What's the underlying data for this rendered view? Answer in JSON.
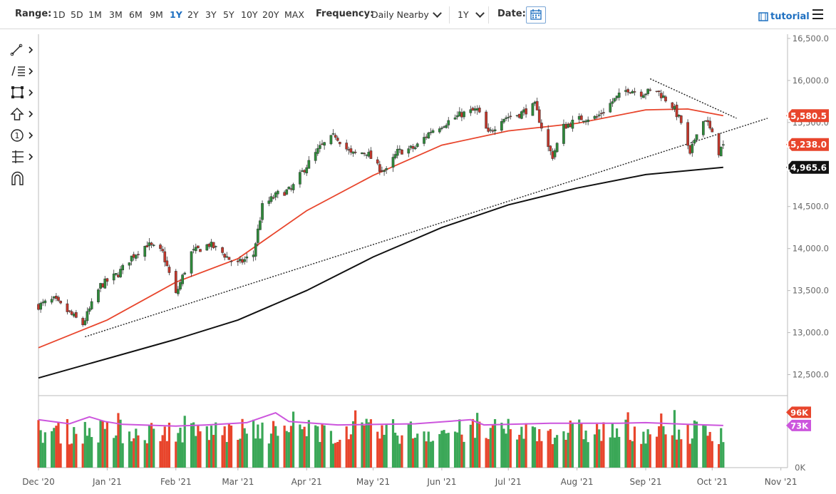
{
  "toolbar": {
    "range_label": "Range:",
    "ranges": [
      "1D",
      "5D",
      "1M",
      "3M",
      "6M",
      "9M",
      "1Y",
      "2Y",
      "3Y",
      "5Y",
      "10Y",
      "20Y",
      "MAX"
    ],
    "active_range": "1Y",
    "frequency_label": "Frequency:",
    "frequency_value": "Daily Nearby",
    "period_value": "1Y",
    "date_label": "Date:",
    "tutorial_label": "tutorial"
  },
  "tools": [
    {
      "name": "trendline-tool-icon"
    },
    {
      "name": "fibonacci-tool-icon"
    },
    {
      "name": "rectangle-tool-icon"
    },
    {
      "name": "arrow-tool-icon"
    },
    {
      "name": "label-tool-icon"
    },
    {
      "name": "measure-tool-icon"
    },
    {
      "name": "magnet-tool-icon"
    }
  ],
  "chart_data": {
    "type": "candlestick",
    "y_ticks": [
      "16,500.0",
      "16,000.0",
      "15,500.0",
      "15,000.0",
      "14,500.0",
      "14,000.0",
      "13,500.0",
      "13,000.0",
      "12,500.0"
    ],
    "y_tick_values": [
      16500,
      16000,
      15500,
      15000,
      14500,
      14000,
      13500,
      13000,
      12500
    ],
    "ylim": [
      12250,
      16550
    ],
    "x_labels": [
      "Dec '20",
      "Jan '21",
      "Feb '21",
      "Mar '21",
      "Apr '21",
      "May '21",
      "Jun '21",
      "Jul '21",
      "Aug '21",
      "Sep '21",
      "Oct '21",
      "Nov '21"
    ],
    "x_label_dates": [
      "2020-12-01",
      "2021-01-01",
      "2021-02-01",
      "2021-03-01",
      "2021-04-01",
      "2021-05-01",
      "2021-06-01",
      "2021-07-01",
      "2021-08-01",
      "2021-09-01",
      "2021-10-01",
      "2021-11-01"
    ],
    "xlim": [
      "2020-12-01",
      "2021-11-04"
    ],
    "close_path": [
      [
        "2020-12-01",
        13320
      ],
      [
        "2020-12-08",
        13390
      ],
      [
        "2020-12-15",
        13230
      ],
      [
        "2020-12-21",
        13100
      ],
      [
        "2020-12-29",
        13560
      ],
      [
        "2021-01-06",
        13700
      ],
      [
        "2021-01-12",
        13900
      ],
      [
        "2021-01-19",
        14050
      ],
      [
        "2021-01-26",
        13950
      ],
      [
        "2021-02-01",
        13450
      ],
      [
        "2021-02-08",
        13950
      ],
      [
        "2021-02-16",
        14050
      ],
      [
        "2021-02-22",
        13950
      ],
      [
        "2021-02-28",
        13800
      ],
      [
        "2021-03-08",
        13930
      ],
      [
        "2021-03-12",
        14500
      ],
      [
        "2021-03-19",
        14650
      ],
      [
        "2021-03-25",
        14700
      ],
      [
        "2021-03-31",
        14950
      ],
      [
        "2021-04-07",
        15200
      ],
      [
        "2021-04-14",
        15350
      ],
      [
        "2021-04-21",
        15120
      ],
      [
        "2021-04-28",
        15150
      ],
      [
        "2021-05-03",
        14970
      ],
      [
        "2021-05-07",
        14920
      ],
      [
        "2021-05-12",
        15150
      ],
      [
        "2021-05-20",
        15200
      ],
      [
        "2021-05-27",
        15400
      ],
      [
        "2021-06-03",
        15500
      ],
      [
        "2021-06-10",
        15600
      ],
      [
        "2021-06-17",
        15650
      ],
      [
        "2021-06-22",
        15360
      ],
      [
        "2021-06-28",
        15550
      ],
      [
        "2021-07-06",
        15600
      ],
      [
        "2021-07-13",
        15700
      ],
      [
        "2021-07-19",
        15200
      ],
      [
        "2021-07-21",
        15100
      ],
      [
        "2021-07-26",
        15450
      ],
      [
        "2021-08-03",
        15550
      ],
      [
        "2021-08-10",
        15560
      ],
      [
        "2021-08-17",
        15750
      ],
      [
        "2021-08-24",
        15900
      ],
      [
        "2021-08-30",
        15850
      ],
      [
        "2021-09-06",
        15880
      ],
      [
        "2021-09-13",
        15700
      ],
      [
        "2021-09-17",
        15500
      ],
      [
        "2021-09-21",
        15100
      ],
      [
        "2021-09-24",
        15400
      ],
      [
        "2021-09-28",
        15550
      ],
      [
        "2021-10-01",
        15350
      ],
      [
        "2021-10-04",
        15150
      ],
      [
        "2021-10-06",
        15238
      ]
    ],
    "ma50": [
      [
        "2020-12-01",
        12820
      ],
      [
        "2021-01-01",
        13150
      ],
      [
        "2021-02-01",
        13600
      ],
      [
        "2021-03-01",
        13880
      ],
      [
        "2021-04-01",
        14450
      ],
      [
        "2021-05-01",
        14870
      ],
      [
        "2021-06-01",
        15230
      ],
      [
        "2021-07-01",
        15400
      ],
      [
        "2021-08-01",
        15490
      ],
      [
        "2021-09-01",
        15650
      ],
      [
        "2021-09-20",
        15660
      ],
      [
        "2021-10-06",
        15580.5
      ]
    ],
    "ma200": [
      [
        "2020-12-01",
        12460
      ],
      [
        "2021-01-01",
        12690
      ],
      [
        "2021-02-01",
        12920
      ],
      [
        "2021-03-01",
        13150
      ],
      [
        "2021-04-01",
        13500
      ],
      [
        "2021-05-01",
        13900
      ],
      [
        "2021-06-01",
        14250
      ],
      [
        "2021-07-01",
        14520
      ],
      [
        "2021-08-01",
        14720
      ],
      [
        "2021-09-01",
        14880
      ],
      [
        "2021-10-06",
        14965.6
      ]
    ],
    "trendlines": [
      {
        "style": "dotted",
        "points": [
          [
            "2020-12-22",
            12950
          ],
          [
            "2021-10-26",
            15550
          ]
        ]
      },
      {
        "style": "dotted",
        "points": [
          [
            "2021-09-03",
            16020
          ],
          [
            "2021-10-12",
            15550
          ]
        ]
      }
    ],
    "price_labels": [
      {
        "text": "15,580.5",
        "value": 15580.5,
        "color": "#e8452c"
      },
      {
        "text": "15,238.0",
        "value": 15238.0,
        "color": "#e8452c"
      },
      {
        "text": "14,965.6",
        "value": 14965.6,
        "color": "#111111"
      }
    ],
    "volume": {
      "ticks": [
        "96K",
        "73K",
        "0K"
      ],
      "tick_values": [
        96000,
        73000,
        0
      ],
      "ylim": [
        0,
        110000
      ],
      "volume_ma": [
        [
          "2020-12-01",
          83000
        ],
        [
          "2020-12-15",
          76000
        ],
        [
          "2020-12-24",
          88000
        ],
        [
          "2020-12-31",
          80000
        ],
        [
          "2021-01-08",
          75000
        ],
        [
          "2021-02-01",
          72000
        ],
        [
          "2021-02-15",
          74000
        ],
        [
          "2021-03-05",
          78000
        ],
        [
          "2021-03-18",
          95000
        ],
        [
          "2021-03-24",
          80000
        ],
        [
          "2021-04-15",
          74000
        ],
        [
          "2021-05-20",
          76000
        ],
        [
          "2021-06-14",
          83000
        ],
        [
          "2021-06-20",
          74000
        ],
        [
          "2021-07-20",
          77000
        ],
        [
          "2021-08-20",
          77000
        ],
        [
          "2021-09-01",
          78000
        ],
        [
          "2021-09-20",
          75000
        ],
        [
          "2021-10-06",
          73000
        ]
      ],
      "colors": {
        "up": "#3aa757",
        "down": "#e8452c",
        "ma": "#cc55dd"
      }
    },
    "colors": {
      "up": "#2e8b3a",
      "down": "#c4372b",
      "ma50": "#e8452c",
      "ma200": "#111111"
    }
  }
}
